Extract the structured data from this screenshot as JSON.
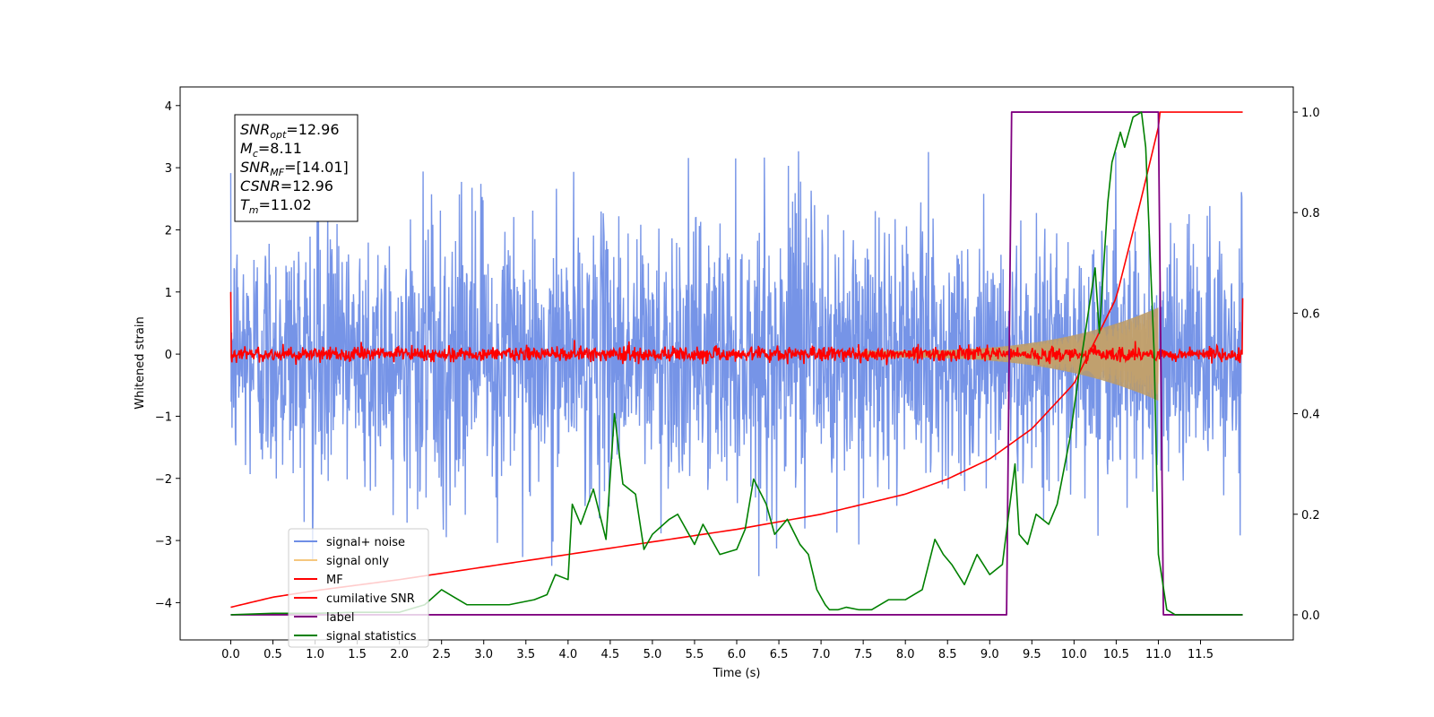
{
  "chart_data": {
    "type": "line",
    "xlabel": "Time (s)",
    "ylabel": "Whitened strain",
    "xlim": [
      -0.6,
      12.6
    ],
    "ylim": [
      -4.6,
      4.3
    ],
    "ylim_right": [
      -0.05,
      1.05
    ],
    "x_ticks": [
      "0.0",
      "0.5",
      "1.0",
      "1.5",
      "2.0",
      "2.5",
      "3.0",
      "3.5",
      "4.0",
      "4.5",
      "5.0",
      "5.5",
      "6.0",
      "6.5",
      "7.0",
      "7.5",
      "8.0",
      "8.5",
      "9.0",
      "9.5",
      "10.0",
      "10.5",
      "11.0",
      "11.5"
    ],
    "y_ticks": [
      "4",
      "3",
      "2",
      "1",
      "0",
      "−1",
      "−2",
      "−3",
      "−4"
    ],
    "y_ticks_right": [
      "1.0",
      "0.8",
      "0.6",
      "0.4",
      "0.2",
      "0.0"
    ],
    "grid": false,
    "legend_placement": "lower left",
    "annotation": [
      {
        "sym": "SNR",
        "sub": "opt",
        "rest": "=12.96"
      },
      {
        "sym": "M",
        "sub": "c",
        "rest": "=8.11"
      },
      {
        "sym": "SNR",
        "sub": "MF",
        "rest": "=[14.01]"
      },
      {
        "sym": "CSNR",
        "sub": "",
        "rest": "=12.96"
      },
      {
        "sym": "T",
        "sub": "m",
        "rest": "=11.02"
      }
    ],
    "series": [
      {
        "name": "signal+ noise",
        "color": "#6f8ee6",
        "axis": "left",
        "x_range": [
          0.0,
          12.0
        ],
        "noise_sigma": 1.0,
        "note_envelope": "noise band roughly within ±2.5 with spikes to about ±3.6"
      },
      {
        "name": "signal only",
        "color": "#f5c77e",
        "axis": "left",
        "chirp_start": 7.5,
        "chirp_end": 11.0,
        "amplitude_start": 0.05,
        "amplitude_end": 0.75
      },
      {
        "name": "MF",
        "color": "#ff0000",
        "axis": "left",
        "x_range": [
          0.0,
          12.0
        ],
        "typical_amplitude": 0.06,
        "edges": [
          1.0,
          0.9
        ]
      },
      {
        "name": "cumilative SNR",
        "color": "#ff0000",
        "axis": "right",
        "x": [
          0.0,
          0.5,
          1.0,
          2.0,
          3.0,
          4.0,
          5.0,
          6.0,
          7.0,
          8.0,
          8.5,
          9.0,
          9.5,
          10.0,
          10.5,
          10.8,
          11.0,
          11.02,
          12.0
        ],
        "values": [
          0.015,
          0.035,
          0.048,
          0.07,
          0.095,
          0.12,
          0.145,
          0.17,
          0.2,
          0.24,
          0.27,
          0.31,
          0.37,
          0.46,
          0.63,
          0.83,
          0.97,
          1.0,
          1.0
        ]
      },
      {
        "name": "label",
        "color": "#800080",
        "axis": "right",
        "x": [
          0.0,
          9.2,
          9.26,
          11.0,
          11.06,
          12.0
        ],
        "values": [
          0.0,
          0.0,
          1.0,
          1.0,
          0.0,
          0.0
        ]
      },
      {
        "name": "signal statistics",
        "color": "#008000",
        "axis": "right",
        "x": [
          0.0,
          0.5,
          1.0,
          1.5,
          2.0,
          2.3,
          2.5,
          2.8,
          3.0,
          3.3,
          3.6,
          3.75,
          3.85,
          4.0,
          4.05,
          4.15,
          4.3,
          4.45,
          4.55,
          4.65,
          4.8,
          4.9,
          5.0,
          5.2,
          5.3,
          5.5,
          5.6,
          5.8,
          6.0,
          6.1,
          6.2,
          6.35,
          6.45,
          6.6,
          6.75,
          6.85,
          6.95,
          7.05,
          7.1,
          7.2,
          7.3,
          7.45,
          7.6,
          7.8,
          8.0,
          8.2,
          8.35,
          8.45,
          8.55,
          8.7,
          8.85,
          9.0,
          9.15,
          9.3,
          9.35,
          9.45,
          9.55,
          9.7,
          9.8,
          9.95,
          10.05,
          10.15,
          10.25,
          10.3,
          10.4,
          10.45,
          10.55,
          10.6,
          10.7,
          10.8,
          10.85,
          10.95,
          11.0,
          11.1,
          11.2,
          11.5,
          12.0
        ],
        "values": [
          0.0,
          0.003,
          0.003,
          0.005,
          0.005,
          0.02,
          0.05,
          0.02,
          0.02,
          0.02,
          0.03,
          0.04,
          0.08,
          0.07,
          0.22,
          0.18,
          0.25,
          0.15,
          0.4,
          0.26,
          0.24,
          0.13,
          0.16,
          0.19,
          0.2,
          0.14,
          0.18,
          0.12,
          0.13,
          0.17,
          0.27,
          0.22,
          0.16,
          0.19,
          0.14,
          0.12,
          0.05,
          0.02,
          0.01,
          0.01,
          0.015,
          0.01,
          0.01,
          0.03,
          0.03,
          0.05,
          0.15,
          0.12,
          0.1,
          0.06,
          0.12,
          0.08,
          0.1,
          0.3,
          0.16,
          0.14,
          0.2,
          0.18,
          0.22,
          0.35,
          0.47,
          0.58,
          0.69,
          0.56,
          0.82,
          0.9,
          0.96,
          0.93,
          0.99,
          1.0,
          0.93,
          0.52,
          0.12,
          0.01,
          0.0,
          0.0,
          0.0
        ]
      }
    ]
  }
}
